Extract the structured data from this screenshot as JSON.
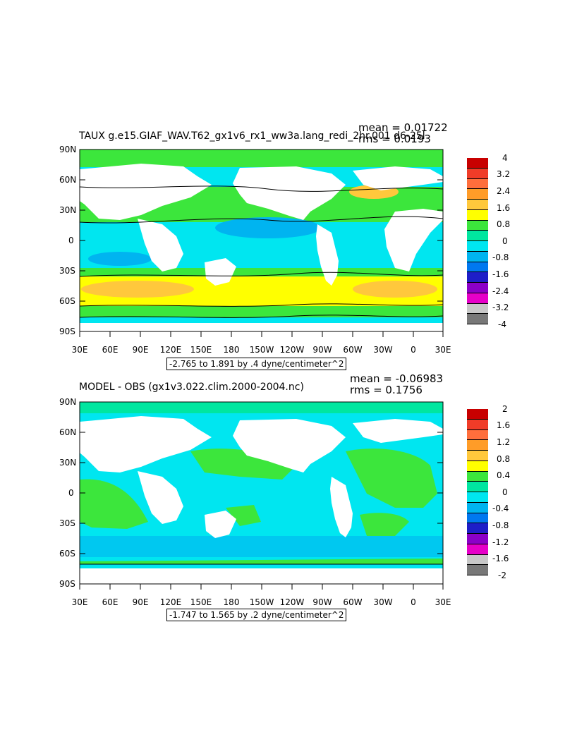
{
  "panels": [
    {
      "title": "TAUX g.e15.GIAF_WAV.T62_gx1v6_rx1_ww3a.lang_redi_2hr.001 d6-25l",
      "mean": "mean = 0.01722",
      "rms": "rms = 0.0193",
      "range_text": "-2.765 to 1.891 by .4 dyne/centimeter^2",
      "colorbar_labels": [
        "4",
        "3.2",
        "2.4",
        "1.6",
        "0.8",
        "0",
        "-0.8",
        "-1.6",
        "-2.4",
        "-3.2",
        "-4"
      ],
      "colorbar_colors": [
        "#c80000",
        "#f03c28",
        "#ff6e3c",
        "#ff9c28",
        "#ffc83c",
        "#ffff00",
        "#3ce63c",
        "#00e6a0",
        "#00e6f0",
        "#00b4f0",
        "#0078f0",
        "#1e1ec8",
        "#8c00c8",
        "#e600c8",
        "#c8c8c8",
        "#787878"
      ]
    },
    {
      "title": "MODEL - OBS (gx1v3.022.clim.2000-2004.nc)",
      "mean": "mean = -0.06983",
      "rms": "rms = 0.1756",
      "range_text": "-1.747 to 1.565 by .2 dyne/centimeter^2",
      "colorbar_labels": [
        "2",
        "1.6",
        "1.2",
        "0.8",
        "0.4",
        "0",
        "-0.4",
        "-0.8",
        "-1.2",
        "-1.6",
        "-2"
      ],
      "colorbar_colors": [
        "#c80000",
        "#f03c28",
        "#ff6e3c",
        "#ff9c28",
        "#ffc83c",
        "#ffff00",
        "#3ce63c",
        "#00e6a0",
        "#00e6f0",
        "#00b4f0",
        "#0078f0",
        "#1e1ec8",
        "#8c00c8",
        "#e600c8",
        "#c8c8c8",
        "#787878"
      ]
    }
  ],
  "lat_labels": [
    "90N",
    "60N",
    "30N",
    "0",
    "30S",
    "60S",
    "90S"
  ],
  "lon_labels": [
    "30E",
    "60E",
    "90E",
    "120E",
    "150E",
    "180",
    "150W",
    "120W",
    "90W",
    "60W",
    "30W",
    "0",
    "30E"
  ],
  "colors": {
    "ocean_green": "#3ce63c",
    "ocean_cyan": "#00e6f0",
    "ocean_teal": "#00e6a0",
    "ocean_blue": "#00b4f0",
    "yellow": "#ffff00",
    "orange": "#ffc83c",
    "land": "#ffffff"
  }
}
